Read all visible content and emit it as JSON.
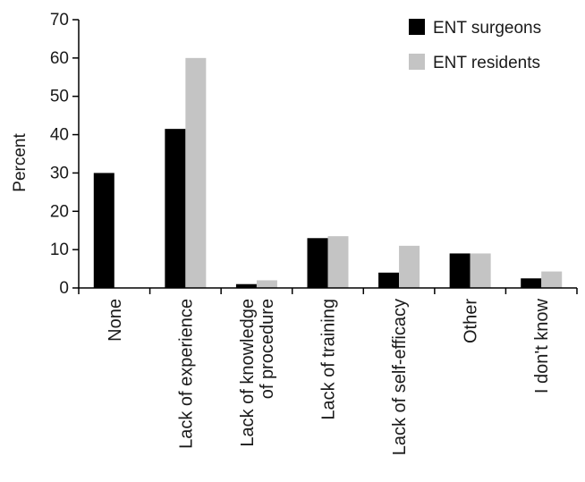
{
  "chart_data": {
    "type": "bar",
    "ylabel": "Percent",
    "ylim": [
      0,
      70
    ],
    "yticks": [
      0,
      10,
      20,
      30,
      40,
      50,
      60,
      70
    ],
    "grid": false,
    "legend_position": "top-right",
    "categories": [
      [
        "None"
      ],
      [
        "Lack of experience"
      ],
      [
        "Lack of knowledge",
        "of procedure"
      ],
      [
        "Lack of training"
      ],
      [
        "Lack of self-efficacy"
      ],
      [
        "Other"
      ],
      [
        "I don't know"
      ]
    ],
    "series": [
      {
        "name": "ENT surgeons",
        "color": "#000000",
        "values": [
          30,
          41.5,
          1,
          13,
          4,
          9,
          2.5
        ]
      },
      {
        "name": "ENT residents",
        "color": "#c4c4c4",
        "values": [
          0,
          60,
          2,
          13.5,
          11,
          9,
          4.3
        ]
      }
    ]
  }
}
